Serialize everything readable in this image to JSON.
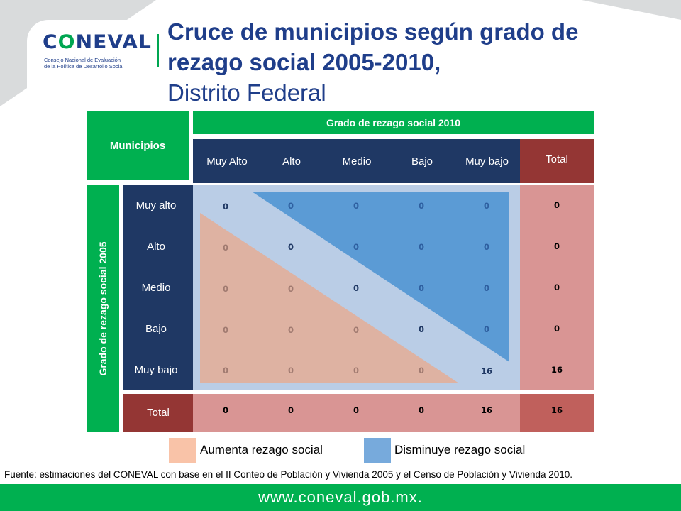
{
  "logo": {
    "word_before": "C",
    "word_o": "O",
    "word_after": "NEVAL",
    "subtitle_line1": "Consejo Nacional de Evaluación",
    "subtitle_line2": "de la Política de Desarrollo Social"
  },
  "title": {
    "line1": "Cruce de municipios según grado de",
    "line2": "rezago social 2005-2010,",
    "line3": "Distrito Federal"
  },
  "table": {
    "corner_label": "Municipios",
    "column_group_label": "Grado de rezago social 2010",
    "row_group_label": "Grado de rezago social 2005",
    "columns": [
      "Muy Alto",
      "Alto",
      "Medio",
      "Bajo",
      "Muy bajo"
    ],
    "total_label": "Total",
    "rows": [
      {
        "label": "Muy alto",
        "values": [
          "0",
          "0",
          "0",
          "0",
          "0"
        ],
        "total": "0"
      },
      {
        "label": "Alto",
        "values": [
          "0",
          "0",
          "0",
          "0",
          "0"
        ],
        "total": "0"
      },
      {
        "label": "Medio",
        "values": [
          "0",
          "0",
          "0",
          "0",
          "0"
        ],
        "total": "0"
      },
      {
        "label": "Bajo",
        "values": [
          "0",
          "0",
          "0",
          "0",
          "0"
        ],
        "total": "0"
      },
      {
        "label": "Muy bajo",
        "values": [
          "0",
          "0",
          "0",
          "0",
          "16"
        ],
        "total": "16"
      }
    ],
    "total_row": {
      "label": "Total",
      "values": [
        "0",
        "0",
        "0",
        "0",
        "16"
      ],
      "total": "16"
    }
  },
  "legend": {
    "increase_label": "Aumenta rezago social",
    "decrease_label": "Disminuye rezago social",
    "increase_color": "#f9c3a8",
    "decrease_color": "#77aadc"
  },
  "source": "Fuente: estimaciones del CONEVAL con base en  el  II Conteo de Población y Vivienda 2005 y el Censo de Población y Vivienda 2010.",
  "footer": {
    "url": "www.coneval.gob.mx."
  },
  "colors": {
    "brand_blue": "#1f3e8a",
    "brand_green": "#00b050",
    "navy": "#1f3864",
    "total_dark": "#943634",
    "total_pink": "#d99594"
  }
}
